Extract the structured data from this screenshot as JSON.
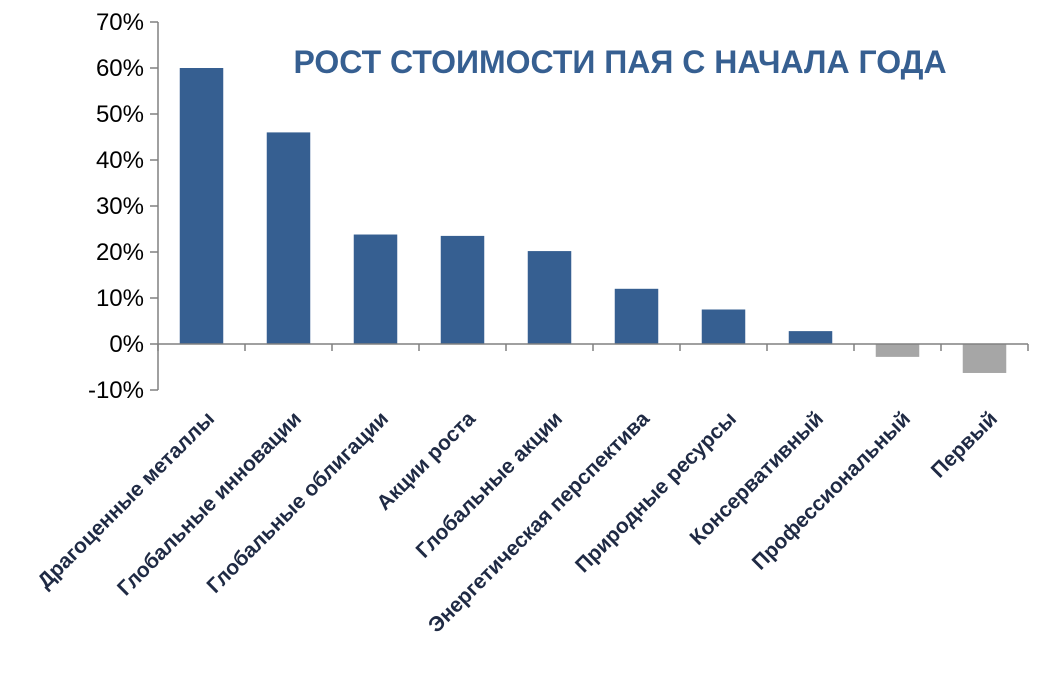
{
  "chart_data": {
    "type": "bar",
    "title": "РОСТ СТОИМОСТИ ПАЯ С НАЧАЛА ГОДА",
    "categories": [
      "Драгоценные металлы",
      "Глобальные инновации",
      "Глобальные облигации",
      "Акции роста",
      "Глобальные акции",
      "Энергетическая перспектива",
      "Природные ресурсы",
      "Консервативный",
      "Профессиональный",
      "Первый"
    ],
    "values": [
      60,
      46,
      23.8,
      23.5,
      20.2,
      12,
      7.5,
      2.8,
      -2.8,
      -6.3
    ],
    "ylim": [
      -10,
      70
    ],
    "yticks": [
      -10,
      0,
      10,
      20,
      30,
      40,
      50,
      60,
      70
    ],
    "ytick_format": "%",
    "colors": {
      "positive": "#365f91",
      "negative": "#a6a6a6",
      "title": "#365f91",
      "axis": "#808080"
    },
    "grid": false,
    "legend": "none"
  }
}
